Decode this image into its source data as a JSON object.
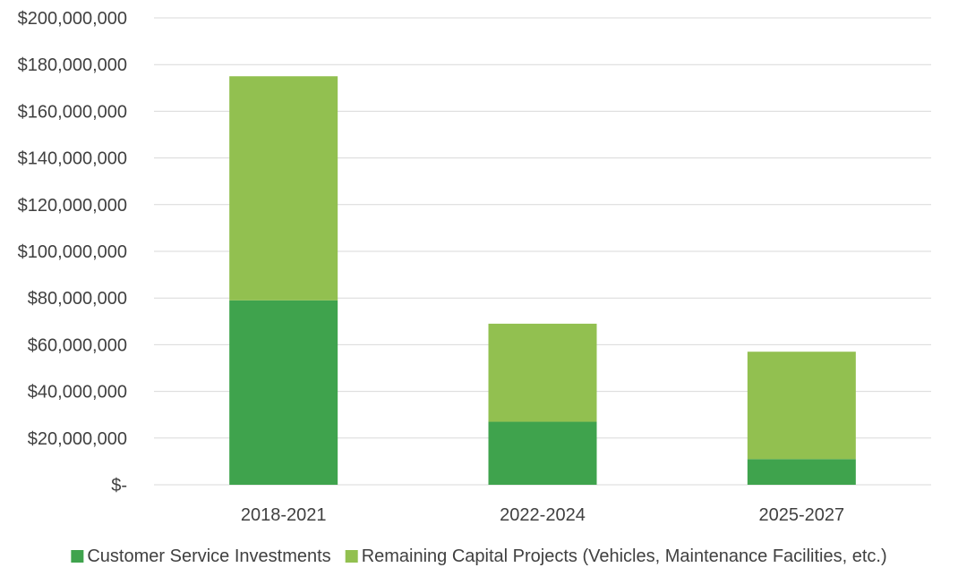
{
  "chart_data": {
    "type": "bar",
    "stacked": true,
    "categories": [
      "2018-2021",
      "2022-2024",
      "2025-2027"
    ],
    "series": [
      {
        "name": "Customer Service Investments",
        "color": "#3fa34d",
        "values": [
          79000000,
          27000000,
          11000000
        ]
      },
      {
        "name": "Remaining Capital Projects (Vehicles, Maintenance Facilities, etc.)",
        "color": "#92c050",
        "values": [
          96000000,
          42000000,
          46000000
        ]
      }
    ],
    "ylim": [
      0,
      200000000
    ],
    "yticks": [
      0,
      20000000,
      40000000,
      60000000,
      80000000,
      100000000,
      120000000,
      140000000,
      160000000,
      180000000,
      200000000
    ],
    "ytick_labels": [
      "$-",
      "$20,000,000",
      "$40,000,000",
      "$60,000,000",
      "$80,000,000",
      "$100,000,000",
      "$120,000,000",
      "$140,000,000",
      "$160,000,000",
      "$180,000,000",
      "$200,000,000"
    ],
    "grid": true,
    "legend_position": "bottom",
    "title": "",
    "xlabel": "",
    "ylabel": ""
  }
}
